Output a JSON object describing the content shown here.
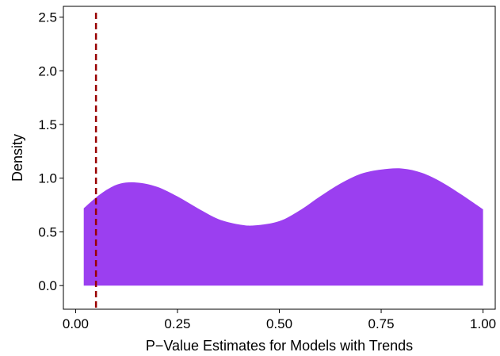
{
  "chart_data": {
    "type": "area",
    "title": "",
    "xlabel": "P−Value Estimates for Models with Trends",
    "ylabel": "Density",
    "xlim": [
      -0.03,
      1.03
    ],
    "ylim": [
      -0.22,
      2.6
    ],
    "x_ticks": [
      0.0,
      0.25,
      0.5,
      0.75,
      1.0
    ],
    "x_tick_labels": [
      "0.00",
      "0.25",
      "0.50",
      "0.75",
      "1.00"
    ],
    "y_ticks": [
      0.0,
      0.5,
      1.0,
      1.5,
      2.0,
      2.5
    ],
    "y_tick_labels": [
      "0.0",
      "0.5",
      "1.0",
      "1.5",
      "2.0",
      "2.5"
    ],
    "grid": false,
    "series": [
      {
        "x": [
          0.02,
          0.05,
          0.08,
          0.11,
          0.15,
          0.2,
          0.25,
          0.3,
          0.35,
          0.4,
          0.44,
          0.5,
          0.55,
          0.6,
          0.65,
          0.7,
          0.75,
          0.8,
          0.85,
          0.9,
          0.95,
          1.0
        ],
        "y": [
          0.72,
          0.82,
          0.9,
          0.95,
          0.96,
          0.92,
          0.83,
          0.72,
          0.62,
          0.57,
          0.56,
          0.6,
          0.7,
          0.83,
          0.95,
          1.04,
          1.08,
          1.09,
          1.05,
          0.96,
          0.84,
          0.71
        ]
      }
    ],
    "colors": {
      "fill": "#9b3ff0",
      "reference_line": "#990000"
    },
    "reference_line": {
      "axis": "x",
      "value": 0.05,
      "style": "dashed"
    }
  }
}
